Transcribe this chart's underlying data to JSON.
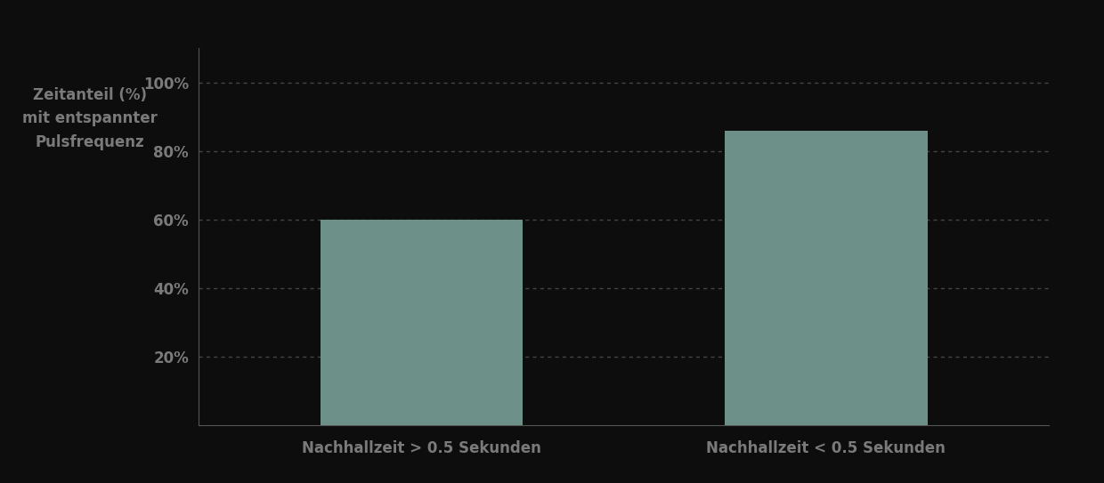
{
  "categories": [
    "Nachhallzeit > 0.5 Sekunden",
    "Nachhallzeit < 0.5 Sekunden"
  ],
  "values": [
    60,
    86
  ],
  "bar_color": "#6d9188",
  "ylabel_line1": "Zeitanteil (%)",
  "ylabel_line2": "mit entspannter",
  "ylabel_line3": "Pulsfrequenz",
  "ylim": [
    0,
    110
  ],
  "yticks": [
    20,
    40,
    60,
    80,
    100
  ],
  "ytick_labels": [
    "20%",
    "40%",
    "60%",
    "80%",
    "100%"
  ],
  "background_color": "#0d0d0d",
  "text_color": "#7a7a7a",
  "grid_color": "#444444",
  "axis_color": "#555555",
  "bar_width": 0.5,
  "ylabel_fontsize": 12,
  "xlabel_fontsize": 12,
  "tick_fontsize": 12
}
